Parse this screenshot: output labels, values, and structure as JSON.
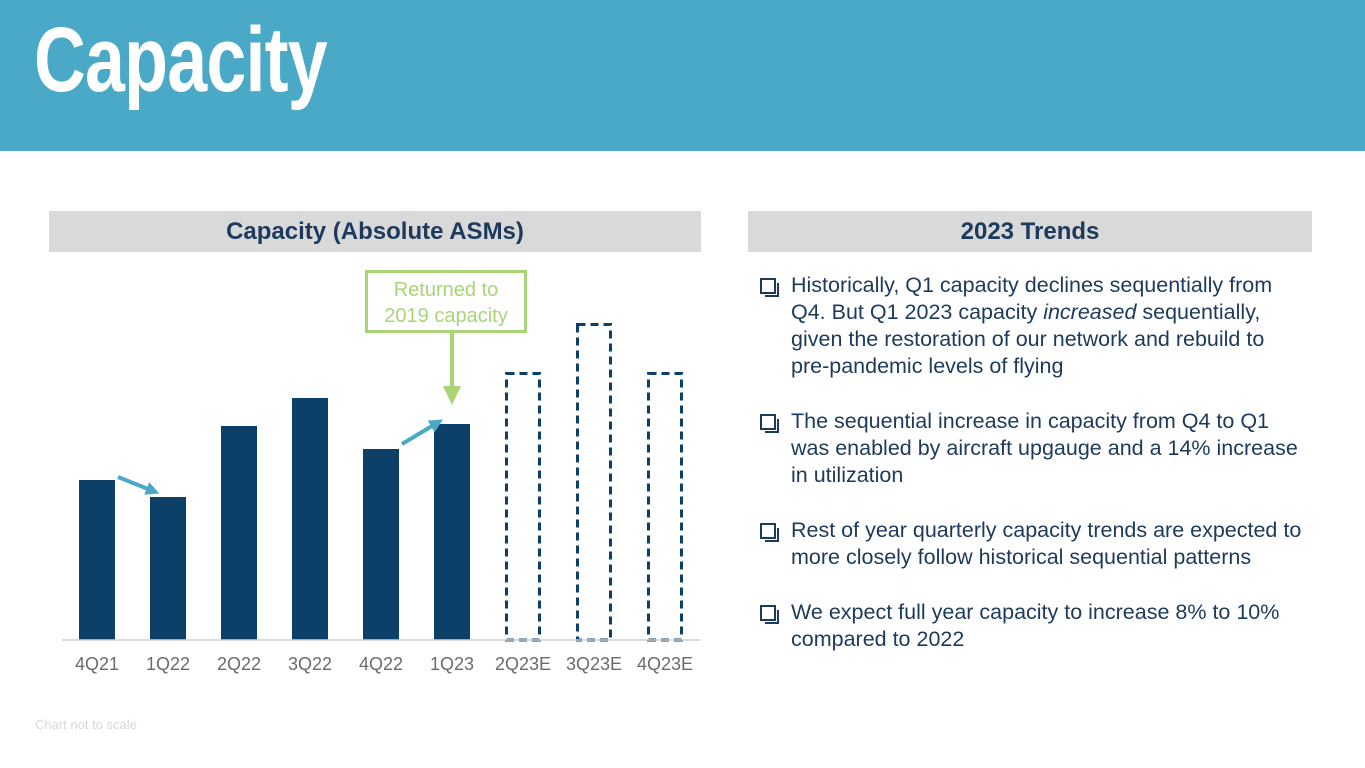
{
  "page": {
    "title": "Capacity",
    "footnote": "Chart not to scale"
  },
  "left_panel": {
    "header": "Capacity (Absolute ASMs)"
  },
  "right_panel": {
    "header": "2023 Trends",
    "bullets": [
      {
        "parts": [
          {
            "text": "Historically, Q1 capacity declines sequentially from Q4. But Q1 2023 capacity ",
            "italic": false
          },
          {
            "text": "increased",
            "italic": true
          },
          {
            "text": " sequentially, given the restoration of our network and rebuild to pre-pandemic levels of flying",
            "italic": false
          }
        ]
      },
      {
        "parts": [
          {
            "text": "The sequential increase in capacity from Q4 to Q1 was enabled by aircraft upgauge and a 14% increase in utilization",
            "italic": false
          }
        ]
      },
      {
        "parts": [
          {
            "text": "Rest of year quarterly capacity trends are expected to more closely follow historical sequential patterns",
            "italic": false
          }
        ]
      },
      {
        "parts": [
          {
            "text": "We expect full year capacity to increase 8% to 10% compared to 2022",
            "italic": false
          }
        ]
      }
    ]
  },
  "chart_data": {
    "type": "bar",
    "title": "Capacity (Absolute ASMs)",
    "categories": [
      "4Q21",
      "1Q22",
      "2Q22",
      "3Q22",
      "4Q22",
      "1Q23",
      "2Q23E",
      "3Q23E",
      "4Q23E"
    ],
    "values": [
      160,
      143,
      214,
      242,
      191,
      216,
      268,
      317,
      268
    ],
    "estimate": [
      false,
      false,
      false,
      false,
      false,
      false,
      true,
      true,
      true
    ],
    "ylim": [
      0,
      360
    ],
    "xlabel": "",
    "ylabel": "",
    "grid": false,
    "annotations": {
      "callout_lines": [
        "Returned to",
        "2019 capacity"
      ],
      "callout_target": "1Q23",
      "arrows": [
        {
          "from": "4Q21",
          "to": "1Q22",
          "direction": "down"
        },
        {
          "from": "4Q22",
          "to": "1Q23",
          "direction": "up"
        }
      ]
    },
    "colors": {
      "actual": "#0d4068",
      "estimate_outline": "#0d4068",
      "arrow": "#4aa9c6",
      "callout": "#a9d576"
    }
  }
}
